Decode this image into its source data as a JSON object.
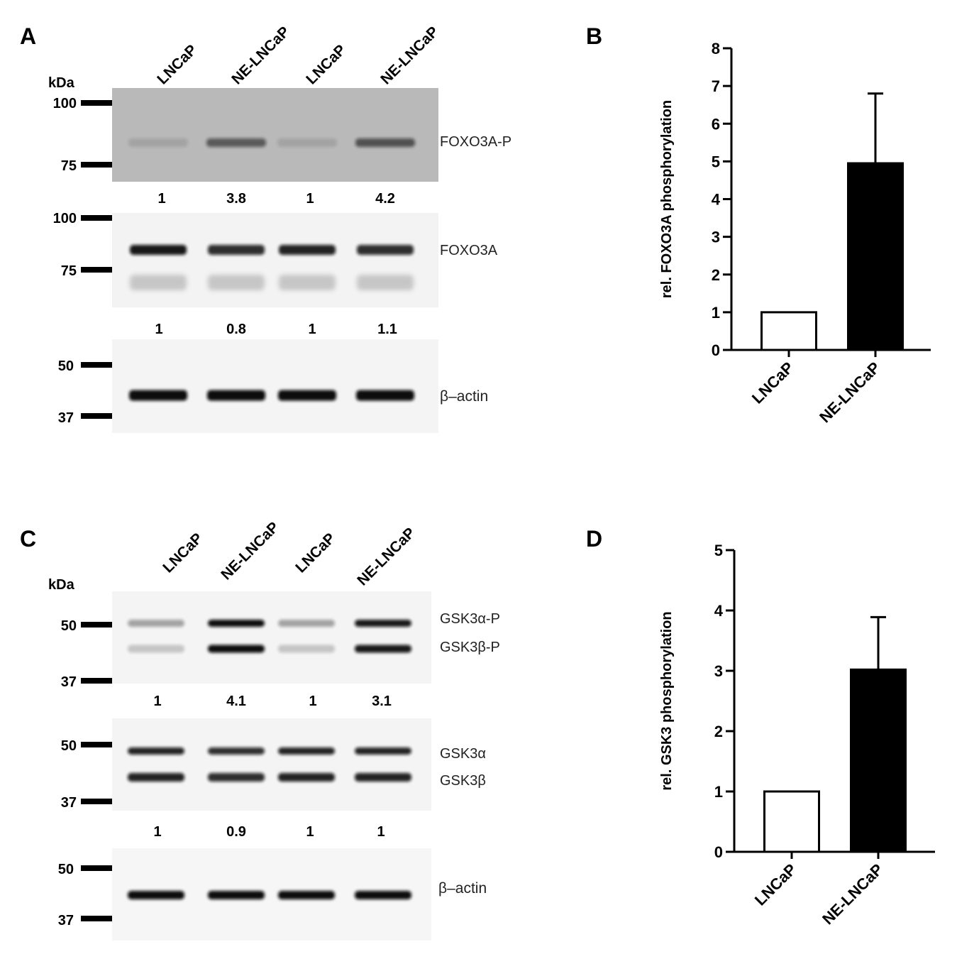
{
  "panels": {
    "A": {
      "letter": "A",
      "kda_label": "kDa",
      "lanes": [
        "LNCaP",
        "NE-LNCaP",
        "LNCaP",
        "NE-LNCaP"
      ],
      "blots": [
        {
          "protein": "FOXO3A-P",
          "markers": [
            "100",
            "75"
          ],
          "bands": [
            0.04,
            0.55,
            0.04,
            0.6
          ],
          "quant": [
            "1",
            "3.8",
            "1",
            "4.2"
          ]
        },
        {
          "protein": "FOXO3A",
          "markers": [
            "100",
            "75"
          ],
          "bands": [
            0.95,
            0.85,
            0.9,
            0.85
          ],
          "quant": [
            "1",
            "0.8",
            "1",
            "1.1"
          ]
        },
        {
          "protein": "β–actin",
          "markers": [
            "50",
            "37"
          ],
          "bands": [
            1,
            1,
            1,
            1
          ],
          "quant": []
        }
      ]
    },
    "C": {
      "letter": "C",
      "kda_label": "kDa",
      "lanes": [
        "LNCaP",
        "NE-LNCaP",
        "LNCaP",
        "NE-LNCaP"
      ],
      "blots": [
        {
          "proteins": [
            "GSK3α-P",
            "GSK3β-P"
          ],
          "markers": [
            "50",
            "37"
          ],
          "bands": [
            0.25,
            1,
            0.25,
            0.95
          ],
          "quant": [
            "1",
            "4.1",
            "1",
            "3.1"
          ]
        },
        {
          "proteins": [
            "GSK3α",
            "GSK3β"
          ],
          "markers": [
            "50",
            "37"
          ],
          "bands": [
            0.9,
            0.85,
            0.9,
            0.9
          ],
          "quant": [
            "1",
            "0.9",
            "1",
            "1"
          ]
        },
        {
          "protein": "β–actin",
          "markers": [
            "50",
            "37"
          ],
          "bands": [
            1,
            1,
            1,
            1
          ],
          "quant": []
        }
      ]
    }
  },
  "chart_data": [
    {
      "panel": "B",
      "type": "bar",
      "categories": [
        "LNCaP",
        "NE-LNCaP"
      ],
      "values": [
        1,
        4.95
      ],
      "errors": [
        0,
        1.85
      ],
      "fills": [
        "#ffffff",
        "#000000"
      ],
      "ylabel": "rel. FOXO3A phosphorylation",
      "xlabel": "",
      "ylim": [
        0,
        8
      ],
      "yticks": [
        "0",
        "1",
        "2",
        "3",
        "4",
        "5",
        "6",
        "7",
        "8"
      ],
      "grid": false
    },
    {
      "panel": "D",
      "type": "bar",
      "categories": [
        "LNCaP",
        "NE-LNCaP"
      ],
      "values": [
        1,
        3.02
      ],
      "errors": [
        0,
        0.87
      ],
      "fills": [
        "#ffffff",
        "#000000"
      ],
      "ylabel": "rel. GSK3 phosphorylation",
      "xlabel": "",
      "ylim": [
        0,
        5
      ],
      "yticks": [
        "0",
        "1",
        "2",
        "3",
        "4",
        "5"
      ],
      "grid": false
    }
  ]
}
